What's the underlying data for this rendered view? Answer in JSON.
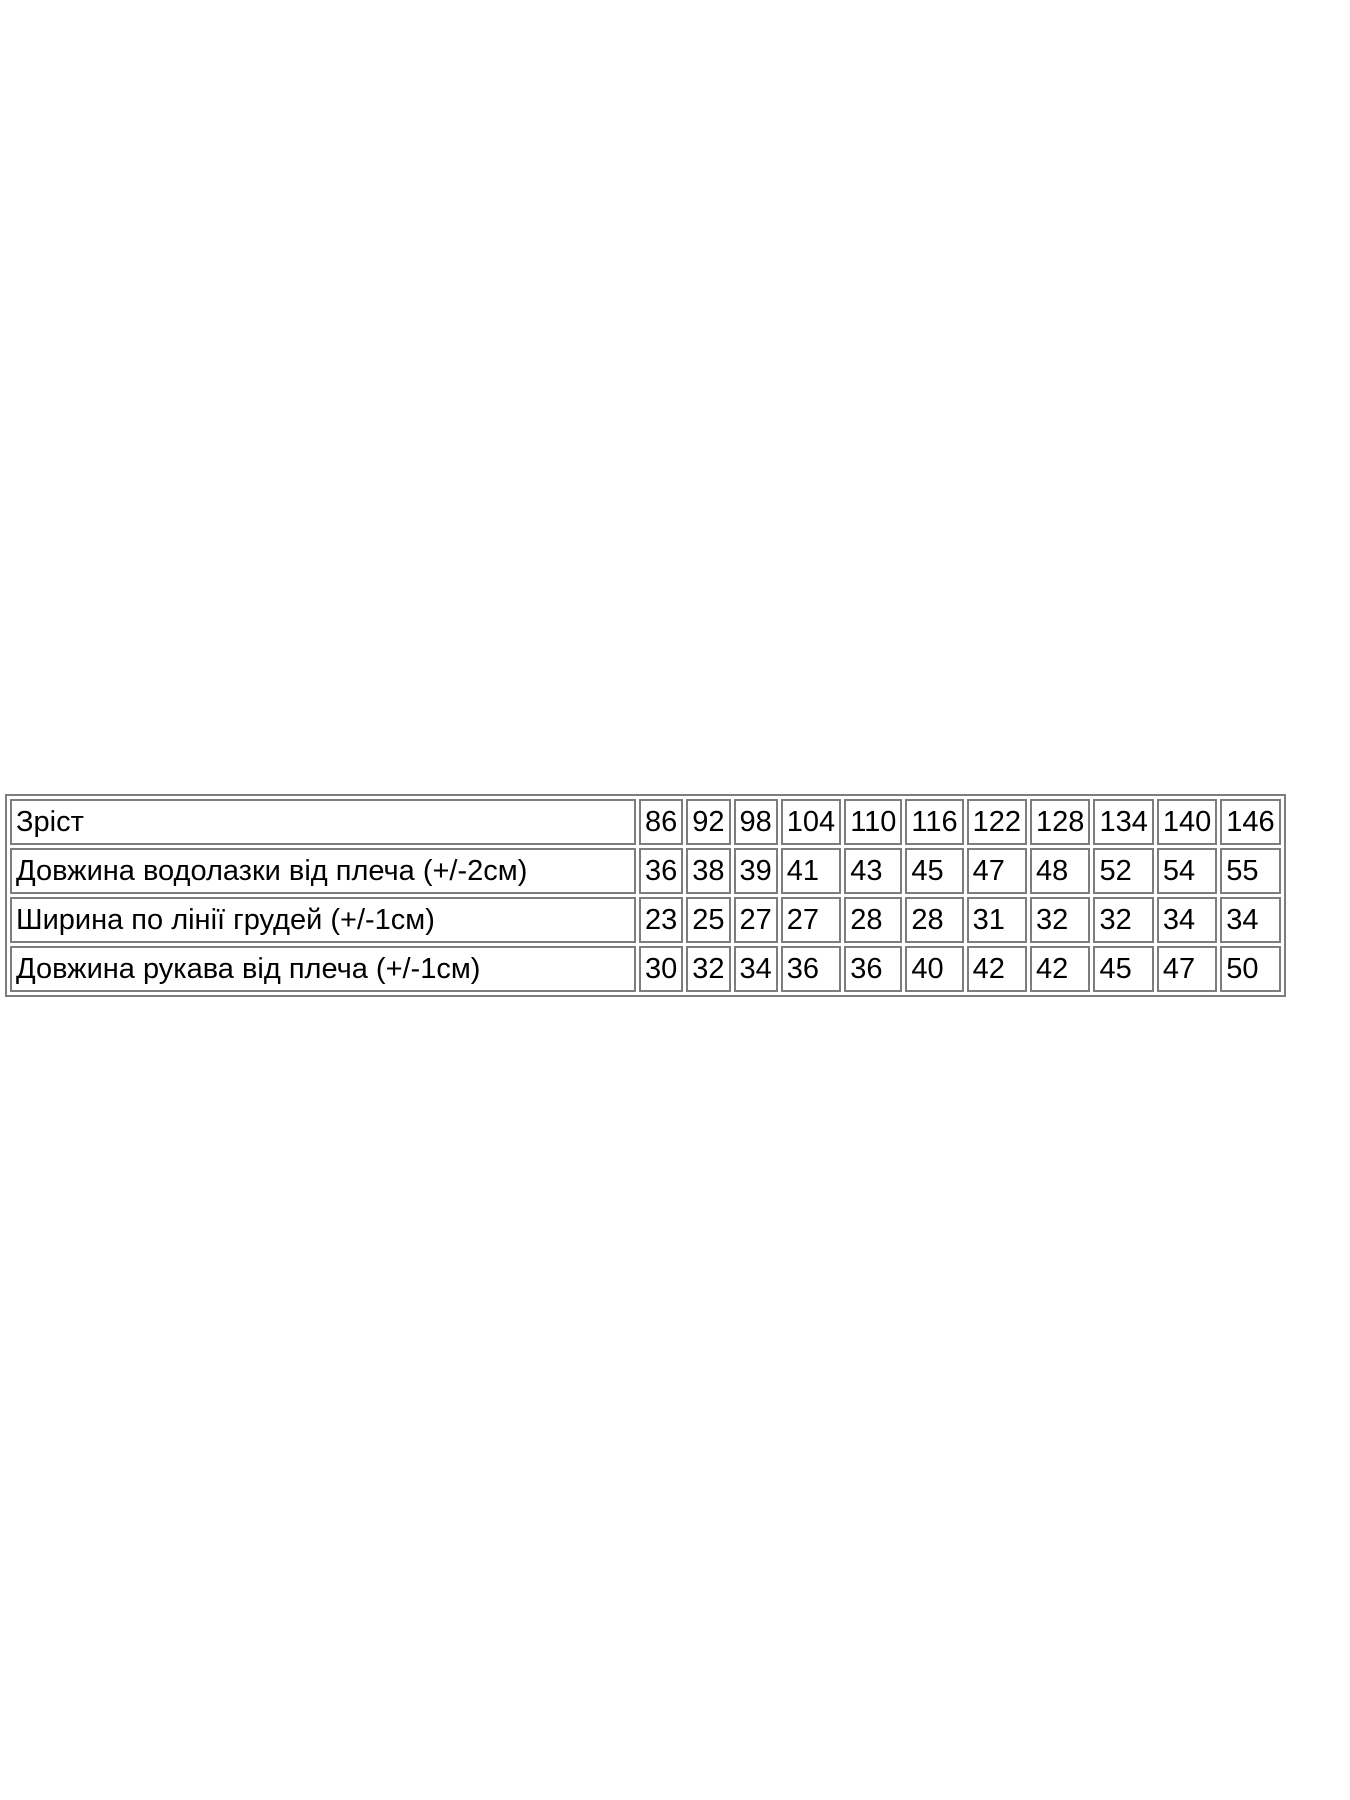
{
  "page": {
    "background": "#ffffff"
  },
  "colors": {
    "table_border": "#7d7d7d",
    "text": "#000000"
  },
  "size_chart": {
    "rows": [
      {
        "label": "Зріст",
        "values": [
          "86",
          "92",
          "98",
          "104",
          "110",
          "116",
          "122",
          "128",
          "134",
          "140",
          "146"
        ]
      },
      {
        "label": "Довжина водолазки від плеча (+/-2см)",
        "values": [
          "36",
          "38",
          "39",
          "41",
          "43",
          "45",
          "47",
          "48",
          "52",
          "54",
          "55"
        ]
      },
      {
        "label": "Ширина по лінії грудей (+/-1см)",
        "values": [
          "23",
          "25",
          "27",
          "27",
          "28",
          "28",
          "31",
          "32",
          "32",
          "34",
          "34"
        ]
      },
      {
        "label": "Довжина рукава від плеча (+/-1см)",
        "values": [
          "30",
          "32",
          "34",
          "36",
          "36",
          "40",
          "42",
          "42",
          "45",
          "47",
          "50"
        ]
      }
    ]
  }
}
